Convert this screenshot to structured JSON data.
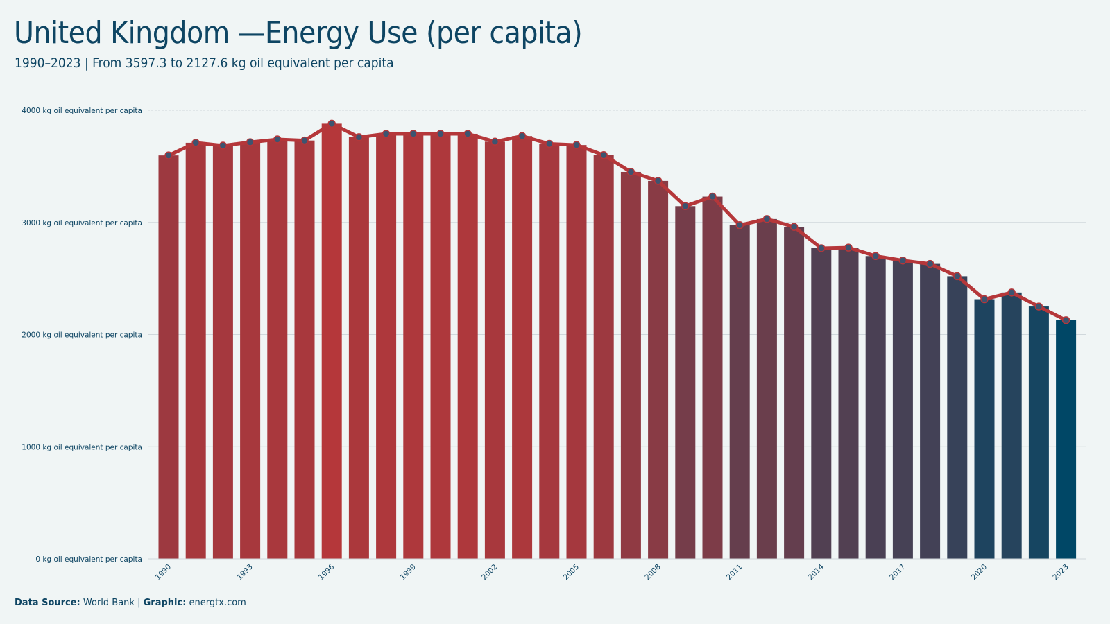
{
  "header": {
    "title": "United Kingdom —Energy Use (per capita)",
    "subtitle": "1990–2023 | From 3597.3 to 2127.6 kg oil equivalent per capita"
  },
  "footer": {
    "source_label": "Data Source:",
    "source_value": "World Bank",
    "separator": "|",
    "graphic_label": "Graphic:",
    "graphic_value": "energtx.com"
  },
  "chart_data": {
    "type": "bar",
    "categories": [
      "1990",
      "1991",
      "1992",
      "1993",
      "1994",
      "1995",
      "1996",
      "1997",
      "1998",
      "1999",
      "2000",
      "2001",
      "2002",
      "2003",
      "2004",
      "2005",
      "2006",
      "2007",
      "2008",
      "2009",
      "2010",
      "2011",
      "2012",
      "2013",
      "2014",
      "2015",
      "2016",
      "2017",
      "2018",
      "2019",
      "2020",
      "2021",
      "2022",
      "2023"
    ],
    "values": [
      3597.3,
      3710,
      3685,
      3715,
      3740,
      3730,
      3880,
      3760,
      3790,
      3790,
      3790,
      3790,
      3720,
      3770,
      3700,
      3690,
      3600,
      3450,
      3370,
      3145,
      3230,
      2975,
      3030,
      2960,
      2770,
      2775,
      2700,
      2660,
      2630,
      2520,
      2315,
      2375,
      2250,
      2127.6
    ],
    "x_tick_labels": [
      "1990",
      "1993",
      "1996",
      "1999",
      "2002",
      "2005",
      "2008",
      "2011",
      "2014",
      "2017",
      "2020",
      "2023"
    ],
    "y_ticks": [
      0,
      1000,
      2000,
      3000,
      4000
    ],
    "y_tick_labels": [
      "0 kg oil equivalent per capita",
      "1000 kg oil equivalent per capita",
      "2000 kg oil equivalent per capita",
      "3000 kg oil equivalent per capita",
      "4000 kg oil equivalent per capita"
    ],
    "ylim": [
      0,
      4000
    ],
    "grid": "horizontal",
    "overlay_line": true,
    "colors": {
      "bar_high": "#b5373a",
      "bar_low": "#004766",
      "line": "#b5373a",
      "marker": "#3d5470",
      "grid": "#d0d8dc",
      "text": "#0e4563"
    }
  }
}
